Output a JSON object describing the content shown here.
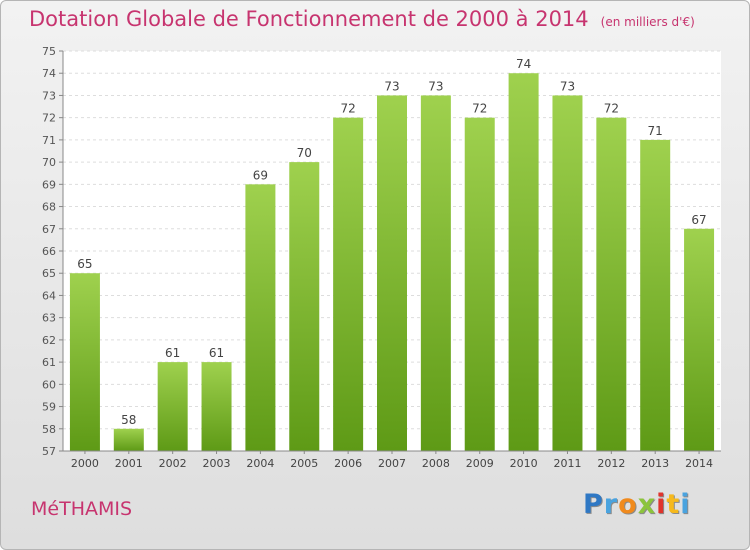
{
  "title": "Dotation Globale de Fonctionnement de 2000 à 2014",
  "subtitle": "(en milliers d'€)",
  "commune": "MéTHAMIS",
  "brand": {
    "text": "Proxiti",
    "letters": [
      {
        "ch": "P",
        "color": "#2f78c4"
      },
      {
        "ch": "r",
        "color": "#4aa3df"
      },
      {
        "ch": "o",
        "color": "#f08a1d"
      },
      {
        "ch": "x",
        "color": "#8cc43c"
      },
      {
        "ch": "i",
        "color": "#e0332c"
      },
      {
        "ch": "t",
        "color": "#f6b91c"
      },
      {
        "ch": "i",
        "color": "#4aa3df"
      }
    ]
  },
  "chart_data": {
    "type": "bar",
    "categories": [
      "2000",
      "2001",
      "2002",
      "2003",
      "2004",
      "2005",
      "2006",
      "2007",
      "2008",
      "2009",
      "2010",
      "2011",
      "2012",
      "2013",
      "2014"
    ],
    "values": [
      65,
      58,
      61,
      61,
      69,
      70,
      72,
      73,
      73,
      72,
      74,
      73,
      72,
      71,
      67
    ],
    "ylim": [
      57,
      75
    ],
    "yticks": [
      57,
      58,
      59,
      60,
      61,
      62,
      63,
      64,
      65,
      66,
      67,
      68,
      69,
      70,
      71,
      72,
      73,
      74,
      75
    ],
    "grid": true,
    "bar_color_top": "#9fd14e",
    "bar_color_bottom": "#5e9a16",
    "title_color": "#c7346f"
  }
}
